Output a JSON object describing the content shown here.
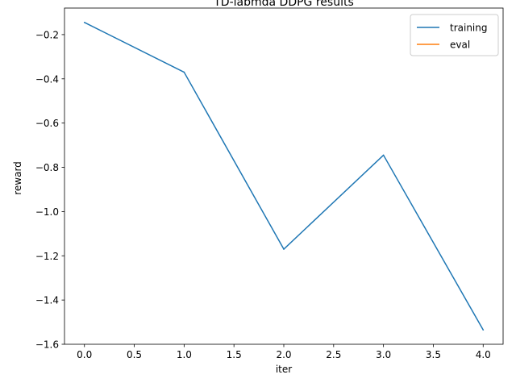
{
  "chart_data": {
    "type": "line",
    "title": "TD-labmda DDPG results",
    "xlabel": "iter",
    "ylabel": "reward",
    "xlim": [
      -0.2,
      4.2
    ],
    "ylim": [
      -1.6,
      -0.08
    ],
    "x_ticks": [
      0.0,
      0.5,
      1.0,
      1.5,
      2.0,
      2.5,
      3.0,
      3.5,
      4.0
    ],
    "x_tick_labels": [
      "0.0",
      "0.5",
      "1.0",
      "1.5",
      "2.0",
      "2.5",
      "3.0",
      "3.5",
      "4.0"
    ],
    "y_ticks": [
      -0.2,
      -0.4,
      -0.6,
      -0.8,
      -1.0,
      -1.2,
      -1.4,
      -1.6
    ],
    "y_tick_labels": [
      "−0.2",
      "−0.4",
      "−0.6",
      "−0.8",
      "−1.0",
      "−1.2",
      "−1.4",
      "−1.6"
    ],
    "grid": false,
    "legend_position": "top-right",
    "series": [
      {
        "name": "training",
        "color": "#1f77b4",
        "x": [
          0,
          1,
          2,
          3,
          4
        ],
        "values": [
          -0.145,
          -0.37,
          -1.17,
          -0.745,
          -1.535
        ]
      },
      {
        "name": "eval",
        "color": "#ff7f0e",
        "x": [],
        "values": []
      }
    ]
  }
}
